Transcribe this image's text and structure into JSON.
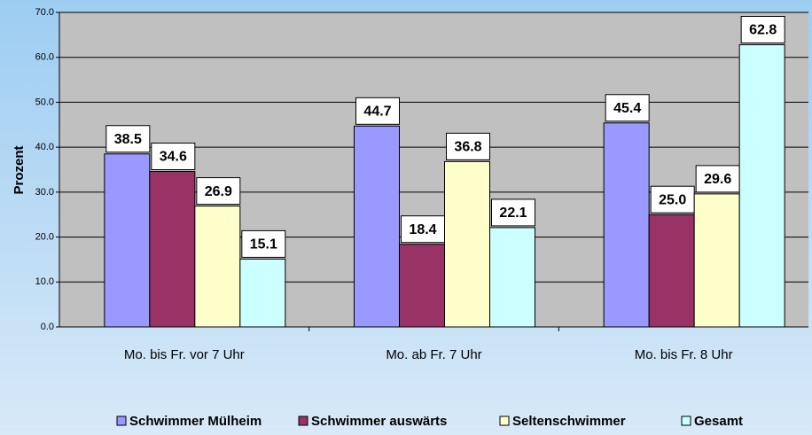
{
  "chart_data": {
    "type": "bar",
    "categories": [
      "Mo. bis Fr. vor 7 Uhr",
      "Mo. ab Fr. 7 Uhr",
      "Mo. bis Fr. 8 Uhr"
    ],
    "y_label": "Prozent",
    "series": [
      {
        "name": "Schwimmer Mülheim",
        "color": "#9999ff",
        "values": [
          38.5,
          44.7,
          45.4
        ],
        "value_labels": [
          "38.5",
          "44.7",
          "45.4"
        ]
      },
      {
        "name": "Schwimmer auswärts",
        "color": "#993366",
        "values": [
          34.6,
          18.4,
          25.0
        ],
        "value_labels": [
          "34.6",
          "18.4",
          "25.0"
        ]
      },
      {
        "name": "Seltenschwimmer",
        "color": "#ffffcc",
        "values": [
          26.9,
          36.8,
          29.6
        ],
        "value_labels": [
          "26.9",
          "36.8",
          "29.6"
        ]
      },
      {
        "name": "Gesamt",
        "color": "#ccffff",
        "values": [
          15.1,
          22.1,
          62.8
        ],
        "value_labels": [
          "15.1",
          "22.1",
          "62.8"
        ]
      }
    ],
    "ylim": [
      0,
      70
    ],
    "yticks": [
      {
        "value": 0,
        "label": "0.0"
      },
      {
        "value": 10,
        "label": "10.0"
      },
      {
        "value": 20,
        "label": "20.0"
      },
      {
        "value": 30,
        "label": "30.0"
      },
      {
        "value": 40,
        "label": "40.0"
      },
      {
        "value": 50,
        "label": "50.0"
      },
      {
        "value": 60,
        "label": "60.0"
      },
      {
        "value": 70,
        "label": "70.0"
      }
    ],
    "grid": true,
    "legend": "bottom"
  }
}
